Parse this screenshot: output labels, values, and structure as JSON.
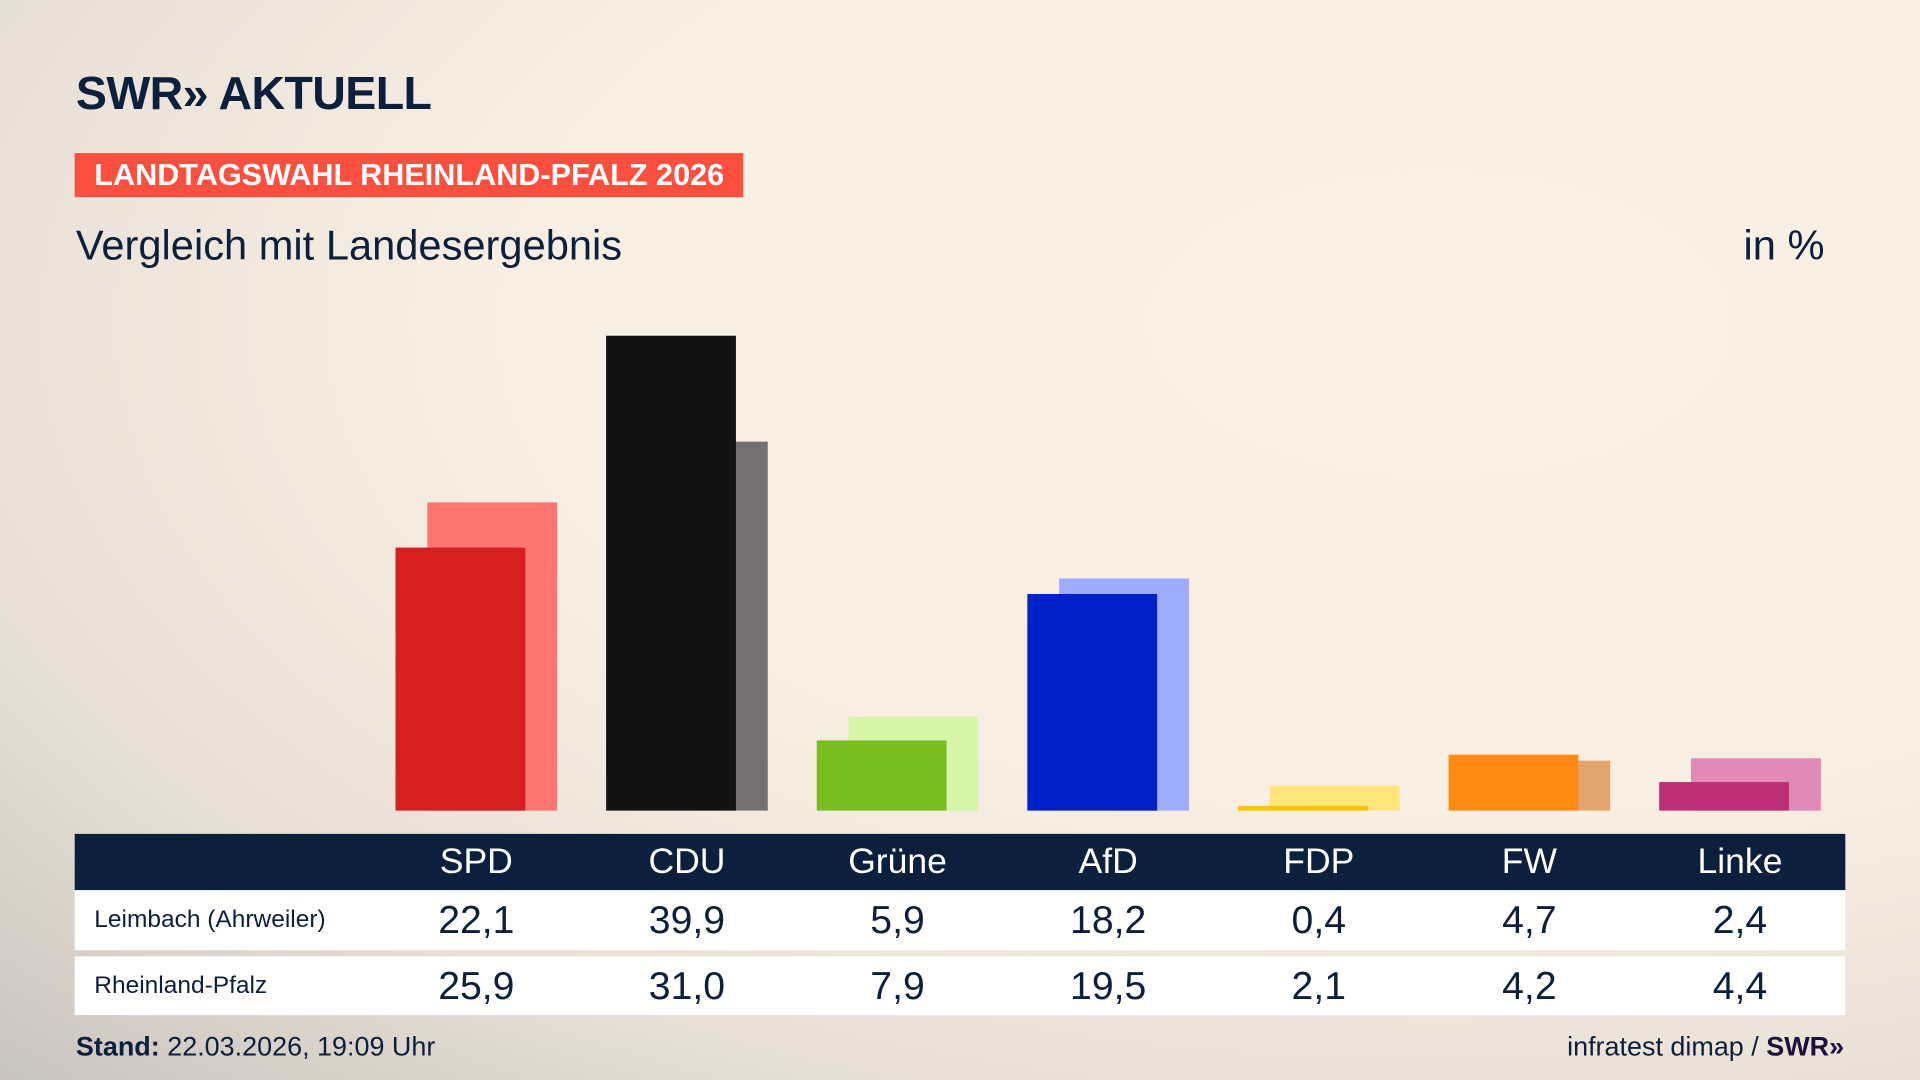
{
  "brand": {
    "logo_text": "SWR» AKTUELL"
  },
  "header": {
    "badge": "LANDTAGSWAHL RHEINLAND-PFALZ 2026",
    "subtitle": "Vergleich mit Landesergebnis",
    "unit": "in %"
  },
  "footer": {
    "stand_label": "Stand:",
    "stand_value": "22.03.2026, 19:09 Uhr",
    "source": "infratest dimap /",
    "source_logo": "SWR»"
  },
  "chart_data": {
    "type": "bar",
    "categories": [
      "SPD",
      "CDU",
      "Grüne",
      "AfD",
      "FDP",
      "FW",
      "Linke"
    ],
    "series": [
      {
        "name": "Leimbach (Ahrweiler)",
        "values": [
          22.1,
          39.9,
          5.9,
          18.2,
          0.4,
          4.7,
          2.4
        ],
        "labels": [
          "22,1",
          "39,9",
          "5,9",
          "18,2",
          "0,4",
          "4,7",
          "2,4"
        ],
        "colors": [
          "#d71f1f",
          "#121212",
          "#78be1e",
          "#0021c8",
          "#f7c600",
          "#ff8a14",
          "#be3075"
        ]
      },
      {
        "name": "Rheinland-Pfalz",
        "values": [
          25.9,
          31.0,
          7.9,
          19.5,
          2.1,
          4.2,
          4.4
        ],
        "labels": [
          "25,9",
          "31,0",
          "7,9",
          "19,5",
          "2,1",
          "4,2",
          "4,4"
        ],
        "colors": [
          "#ff7570",
          "#737171",
          "#d6f5a8",
          "#9eabff",
          "#ffe57a",
          "#e0a66e",
          "#e08ab5"
        ]
      }
    ],
    "ylim": [
      0,
      40
    ],
    "grid": false
  }
}
